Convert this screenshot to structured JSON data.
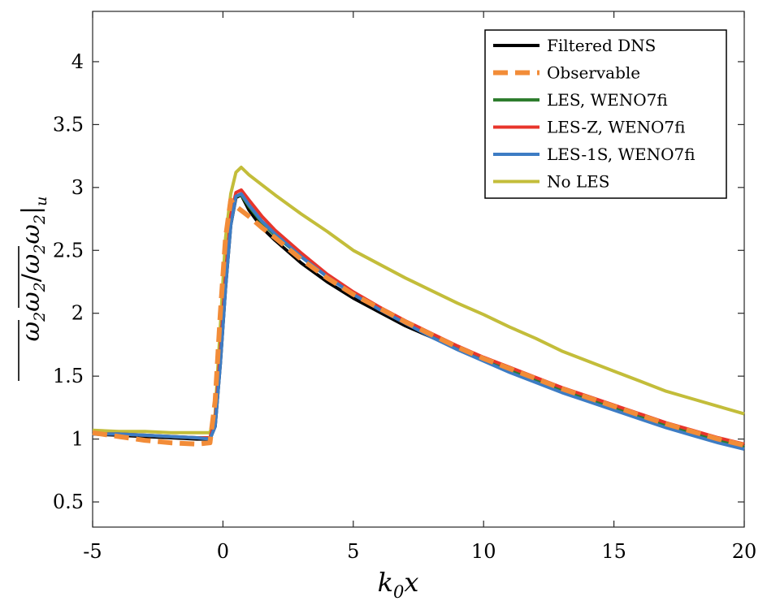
{
  "chart_data": {
    "type": "line",
    "title": "",
    "xlabel": {
      "main": "k",
      "sub": "0",
      "tail": "x"
    },
    "ylabel": {
      "num_w1": "ω",
      "num_s1": "2",
      "num_w2": "ω",
      "num_s2": "2",
      "slash": "/",
      "den_w1": "ω",
      "den_s1": "2",
      "den_w2": "ω",
      "den_s2": "2",
      "bar_sub": "u"
    },
    "xlim": [
      -5,
      20
    ],
    "ylim": [
      0.3,
      4.4
    ],
    "xticks": [
      -5,
      0,
      5,
      10,
      15,
      20
    ],
    "xtick_labels": [
      "-5",
      "0",
      "5",
      "10",
      "15",
      "20"
    ],
    "yticks": [
      0.5,
      1,
      1.5,
      2,
      2.5,
      3,
      3.5,
      4
    ],
    "ytick_labels": [
      "0.5",
      "1",
      "1.5",
      "2",
      "2.5",
      "3",
      "3.5",
      "4"
    ],
    "grid": false,
    "legend_position": "top-right",
    "series": [
      {
        "name": "Filtered DNS",
        "color": "#000000",
        "dash": "solid",
        "points": [
          [
            -5,
            1.04
          ],
          [
            -4,
            1.03
          ],
          [
            -3,
            1.02
          ],
          [
            -2,
            1.01
          ],
          [
            -1,
            1.0
          ],
          [
            -0.5,
            1.0
          ],
          [
            -0.3,
            1.1
          ],
          [
            -0.1,
            1.6
          ],
          [
            0.1,
            2.2
          ],
          [
            0.3,
            2.7
          ],
          [
            0.5,
            2.92
          ],
          [
            0.7,
            2.94
          ],
          [
            1.0,
            2.82
          ],
          [
            1.5,
            2.68
          ],
          [
            2,
            2.58
          ],
          [
            3,
            2.4
          ],
          [
            4,
            2.25
          ],
          [
            5,
            2.12
          ],
          [
            6,
            2.01
          ],
          [
            7,
            1.9
          ],
          [
            8,
            1.81
          ],
          [
            9,
            1.72
          ],
          [
            10,
            1.63
          ],
          [
            11,
            1.55
          ],
          [
            12,
            1.47
          ],
          [
            13,
            1.39
          ],
          [
            14,
            1.32
          ],
          [
            15,
            1.25
          ],
          [
            16,
            1.18
          ],
          [
            17,
            1.11
          ],
          [
            18,
            1.05
          ],
          [
            19,
            0.99
          ],
          [
            20,
            0.95
          ]
        ]
      },
      {
        "name": "Observable",
        "color": "#F28C38",
        "dash": "dashed",
        "points": [
          [
            -5,
            1.05
          ],
          [
            -4,
            1.02
          ],
          [
            -3,
            0.99
          ],
          [
            -2,
            0.97
          ],
          [
            -1,
            0.96
          ],
          [
            -0.5,
            0.97
          ],
          [
            -0.3,
            1.3
          ],
          [
            -0.1,
            2.0
          ],
          [
            0.1,
            2.6
          ],
          [
            0.3,
            2.9
          ],
          [
            0.5,
            2.85
          ],
          [
            1.0,
            2.77
          ],
          [
            1.5,
            2.68
          ],
          [
            2,
            2.6
          ],
          [
            3,
            2.43
          ],
          [
            4,
            2.28
          ],
          [
            5,
            2.15
          ],
          [
            6,
            2.04
          ],
          [
            7,
            1.93
          ],
          [
            8,
            1.83
          ],
          [
            9,
            1.73
          ],
          [
            10,
            1.64
          ],
          [
            11,
            1.56
          ],
          [
            12,
            1.48
          ],
          [
            13,
            1.4
          ],
          [
            14,
            1.33
          ],
          [
            15,
            1.26
          ],
          [
            16,
            1.19
          ],
          [
            17,
            1.12
          ],
          [
            18,
            1.06
          ],
          [
            19,
            1.0
          ],
          [
            20,
            0.95
          ]
        ]
      },
      {
        "name": "LES, WENO7fi",
        "color": "#2E7D2E",
        "dash": "solid",
        "points": [
          [
            -5,
            1.04
          ],
          [
            -4,
            1.04
          ],
          [
            -3,
            1.03
          ],
          [
            -2,
            1.02
          ],
          [
            -1,
            1.01
          ],
          [
            -0.5,
            1.01
          ],
          [
            -0.3,
            1.15
          ],
          [
            -0.1,
            1.7
          ],
          [
            0.1,
            2.3
          ],
          [
            0.3,
            2.75
          ],
          [
            0.5,
            2.93
          ],
          [
            0.7,
            2.94
          ],
          [
            1.0,
            2.85
          ],
          [
            1.5,
            2.72
          ],
          [
            2,
            2.62
          ],
          [
            3,
            2.45
          ],
          [
            4,
            2.29
          ],
          [
            5,
            2.16
          ],
          [
            6,
            2.04
          ],
          [
            7,
            1.93
          ],
          [
            8,
            1.83
          ],
          [
            9,
            1.73
          ],
          [
            10,
            1.64
          ],
          [
            11,
            1.55
          ],
          [
            12,
            1.47
          ],
          [
            13,
            1.39
          ],
          [
            14,
            1.32
          ],
          [
            15,
            1.25
          ],
          [
            16,
            1.18
          ],
          [
            17,
            1.11
          ],
          [
            18,
            1.05
          ],
          [
            19,
            0.99
          ],
          [
            20,
            0.94
          ]
        ]
      },
      {
        "name": "LES-Z, WENO7fi",
        "color": "#E8352B",
        "dash": "solid",
        "points": [
          [
            -5,
            1.04
          ],
          [
            -4,
            1.04
          ],
          [
            -3,
            1.03
          ],
          [
            -2,
            1.02
          ],
          [
            -1,
            1.01
          ],
          [
            -0.5,
            1.01
          ],
          [
            -0.3,
            1.15
          ],
          [
            -0.1,
            1.7
          ],
          [
            0.1,
            2.3
          ],
          [
            0.3,
            2.78
          ],
          [
            0.5,
            2.96
          ],
          [
            0.7,
            2.98
          ],
          [
            1.0,
            2.9
          ],
          [
            1.5,
            2.77
          ],
          [
            2,
            2.66
          ],
          [
            3,
            2.48
          ],
          [
            4,
            2.31
          ],
          [
            5,
            2.17
          ],
          [
            6,
            2.05
          ],
          [
            7,
            1.94
          ],
          [
            8,
            1.84
          ],
          [
            9,
            1.74
          ],
          [
            10,
            1.65
          ],
          [
            11,
            1.57
          ],
          [
            12,
            1.49
          ],
          [
            13,
            1.41
          ],
          [
            14,
            1.34
          ],
          [
            15,
            1.27
          ],
          [
            16,
            1.2
          ],
          [
            17,
            1.13
          ],
          [
            18,
            1.07
          ],
          [
            19,
            1.01
          ],
          [
            20,
            0.96
          ]
        ]
      },
      {
        "name": "LES-1S, WENO7fi",
        "color": "#3D7CC4",
        "dash": "solid",
        "points": [
          [
            -5,
            1.04
          ],
          [
            -4,
            1.04
          ],
          [
            -3,
            1.03
          ],
          [
            -2,
            1.02
          ],
          [
            -1,
            1.01
          ],
          [
            -0.5,
            1.0
          ],
          [
            -0.3,
            1.1
          ],
          [
            -0.1,
            1.6
          ],
          [
            0.1,
            2.2
          ],
          [
            0.3,
            2.7
          ],
          [
            0.5,
            2.93
          ],
          [
            0.7,
            2.95
          ],
          [
            1.0,
            2.86
          ],
          [
            1.5,
            2.73
          ],
          [
            2,
            2.63
          ],
          [
            3,
            2.45
          ],
          [
            4,
            2.29
          ],
          [
            5,
            2.15
          ],
          [
            6,
            2.03
          ],
          [
            7,
            1.92
          ],
          [
            8,
            1.81
          ],
          [
            9,
            1.71
          ],
          [
            10,
            1.62
          ],
          [
            11,
            1.53
          ],
          [
            12,
            1.45
          ],
          [
            13,
            1.37
          ],
          [
            14,
            1.3
          ],
          [
            15,
            1.23
          ],
          [
            16,
            1.16
          ],
          [
            17,
            1.09
          ],
          [
            18,
            1.03
          ],
          [
            19,
            0.97
          ],
          [
            20,
            0.92
          ]
        ]
      },
      {
        "name": "No LES",
        "color": "#C3BD3A",
        "dash": "solid",
        "points": [
          [
            -5,
            1.07
          ],
          [
            -4,
            1.06
          ],
          [
            -3,
            1.06
          ],
          [
            -2,
            1.05
          ],
          [
            -1,
            1.05
          ],
          [
            -0.5,
            1.05
          ],
          [
            -0.3,
            1.2
          ],
          [
            -0.1,
            1.9
          ],
          [
            0.1,
            2.6
          ],
          [
            0.3,
            2.95
          ],
          [
            0.5,
            3.12
          ],
          [
            0.7,
            3.16
          ],
          [
            1.0,
            3.1
          ],
          [
            1.5,
            3.02
          ],
          [
            2,
            2.94
          ],
          [
            3,
            2.79
          ],
          [
            4,
            2.65
          ],
          [
            5,
            2.5
          ],
          [
            6,
            2.39
          ],
          [
            7,
            2.28
          ],
          [
            8,
            2.18
          ],
          [
            9,
            2.08
          ],
          [
            10,
            1.99
          ],
          [
            11,
            1.89
          ],
          [
            12,
            1.8
          ],
          [
            13,
            1.7
          ],
          [
            14,
            1.62
          ],
          [
            15,
            1.54
          ],
          [
            16,
            1.46
          ],
          [
            17,
            1.38
          ],
          [
            18,
            1.32
          ],
          [
            19,
            1.26
          ],
          [
            20,
            1.2
          ]
        ]
      }
    ]
  }
}
